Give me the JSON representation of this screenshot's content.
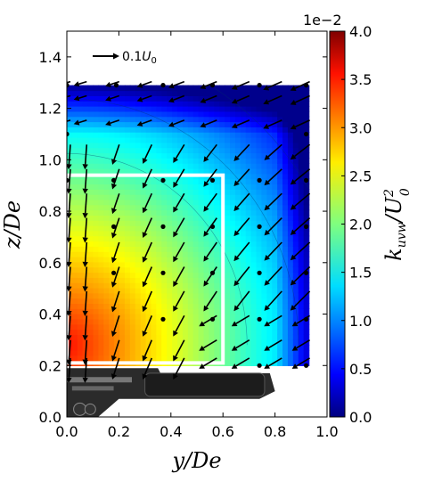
{
  "chart_data": {
    "type": "heatmap",
    "title": "",
    "xlabel": "y/De",
    "ylabel": "z/De",
    "xlim": [
      0.0,
      1.0
    ],
    "ylim": [
      0.0,
      1.5
    ],
    "xticks": [
      "0.0",
      "0.2",
      "0.4",
      "0.6",
      "0.8",
      "1.0"
    ],
    "yticks": [
      "0.0",
      "0.2",
      "0.4",
      "0.6",
      "0.8",
      "1.0",
      "1.2",
      "1.4"
    ],
    "colorbar": {
      "label": "k_uvw/U_0^2",
      "label_html": "k<tspan font-size='14' dy='5'>uvw</tspan><tspan dy='-5'>/U</tspan><tspan font-size='14' dy='-9'>2</tspan><tspan font-size='14' dx='-8' dy='18'>0</tspan>",
      "scale_label": "1e−2",
      "range": [
        0.0,
        4.0
      ],
      "ticks": [
        "0.0",
        "0.5",
        "1.0",
        "1.5",
        "2.0",
        "2.5",
        "3.0",
        "3.5",
        "4.0"
      ],
      "colormap": "jet"
    },
    "field_extent": {
      "y": [
        0.0,
        0.93
      ],
      "z": [
        0.2,
        1.29
      ]
    },
    "field_model": "k is highest (about 3.4e-2) near y=0, z=0.3 and decreases outward to about 0.1e-2 along the top edge z=1.29 and the right edge y=0.93",
    "reference_vector": {
      "label": "0.1U_0",
      "magnitude": 0.1
    },
    "vectors": {
      "y": [
        0.0,
        0.0625,
        0.1875,
        0.3125,
        0.4375,
        0.5625,
        0.6875,
        0.8125,
        0.92
      ],
      "z": [
        1.29,
        1.235,
        1.14,
        1.045,
        0.95,
        0.855,
        0.76,
        0.665,
        0.57,
        0.475,
        0.38,
        0.285,
        0.215
      ],
      "pattern": "downward flow (about -0.05 to -0.08 U0) near y=0; vectors turn toward negative y near the top (z>1.1) and toward negative y and downward near the right and lower-right regions"
    },
    "marker_points": [
      {
        "y": 0.0,
        "z": 1.29
      },
      {
        "y": 0.19,
        "z": 1.29
      },
      {
        "y": 0.37,
        "z": 1.29
      },
      {
        "y": 0.56,
        "z": 1.29
      },
      {
        "y": 0.74,
        "z": 1.29
      },
      {
        "y": 0.92,
        "z": 1.29
      },
      {
        "y": 0.92,
        "z": 1.1
      },
      {
        "y": 0.92,
        "z": 0.92
      },
      {
        "y": 0.92,
        "z": 0.74
      },
      {
        "y": 0.92,
        "z": 0.56
      },
      {
        "y": 0.92,
        "z": 0.38
      },
      {
        "y": 0.92,
        "z": 0.2
      },
      {
        "y": 0.0,
        "z": 1.1
      },
      {
        "y": 0.0,
        "z": 0.92
      },
      {
        "y": 0.18,
        "z": 0.92
      },
      {
        "y": 0.37,
        "z": 0.92
      },
      {
        "y": 0.37,
        "z": 0.74
      },
      {
        "y": 0.37,
        "z": 0.56
      },
      {
        "y": 0.37,
        "z": 0.38
      },
      {
        "y": 0.18,
        "z": 0.74
      },
      {
        "y": 0.18,
        "z": 0.56
      },
      {
        "y": 0.56,
        "z": 0.92
      },
      {
        "y": 0.56,
        "z": 0.74
      },
      {
        "y": 0.56,
        "z": 0.56
      },
      {
        "y": 0.56,
        "z": 0.38
      },
      {
        "y": 0.74,
        "z": 0.92
      },
      {
        "y": 0.74,
        "z": 0.74
      },
      {
        "y": 0.74,
        "z": 0.56
      },
      {
        "y": 0.74,
        "z": 0.38
      },
      {
        "y": 0.74,
        "z": 0.2
      }
    ],
    "white_outline": {
      "y": [
        0.0,
        0.6
      ],
      "z": [
        0.21,
        0.94
      ]
    },
    "background_object": "dark gray vehicle underbody / bogie silhouette spanning y 0.0–0.8, z 0.0–0.2"
  }
}
